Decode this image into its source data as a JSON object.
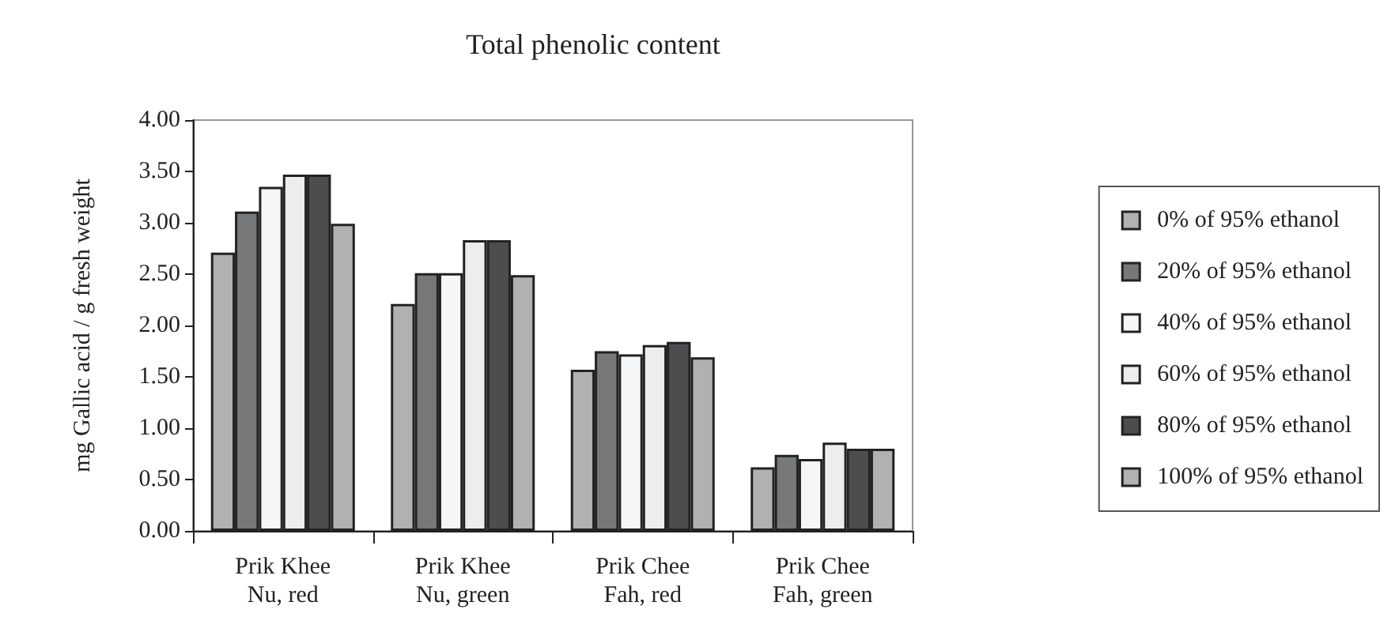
{
  "chart_data": {
    "type": "bar",
    "title": "Total phenolic content",
    "ylabel": "mg Gallic acid / g fresh weight",
    "categories": [
      "Prik Khee\nNu, red",
      "Prik Khee\nNu, green",
      "Prik Chee\nFah, red",
      "Prik Chee\nFah, green"
    ],
    "series": [
      {
        "name": "0% of 95% ethanol",
        "color": "#b0b1b3",
        "values": [
          2.71,
          2.21,
          1.57,
          0.62
        ]
      },
      {
        "name": "20% of 95% ethanol",
        "color": "#77787a",
        "values": [
          3.11,
          2.51,
          1.75,
          0.74
        ]
      },
      {
        "name": "40% of 95% ethanol",
        "color": "#f5f6f8",
        "values": [
          3.35,
          2.51,
          1.72,
          0.7
        ]
      },
      {
        "name": "60% of 95% ethanol",
        "color": "#eceeed",
        "values": [
          3.47,
          2.83,
          1.81,
          0.86
        ]
      },
      {
        "name": "80% of 95% ethanol",
        "color": "#4d4d4f",
        "values": [
          3.47,
          2.83,
          1.84,
          0.8
        ]
      },
      {
        "name": "100% of 95% ethanol",
        "color": "#b0b1b3",
        "values": [
          2.99,
          2.49,
          1.69,
          0.8
        ]
      }
    ],
    "ylim": [
      0,
      4
    ],
    "yticks": [
      {
        "value": 0,
        "label": "0.00"
      },
      {
        "value": 0.5,
        "label": "0.50"
      },
      {
        "value": 1,
        "label": "1.00"
      },
      {
        "value": 1.5,
        "label": "1.50"
      },
      {
        "value": 2,
        "label": "2.00"
      },
      {
        "value": 2.5,
        "label": "2.50"
      },
      {
        "value": 3,
        "label": "3.00"
      },
      {
        "value": 3.5,
        "label": "3.50"
      },
      {
        "value": 4,
        "label": "4.00"
      }
    ],
    "grid": false,
    "legend": "right"
  }
}
